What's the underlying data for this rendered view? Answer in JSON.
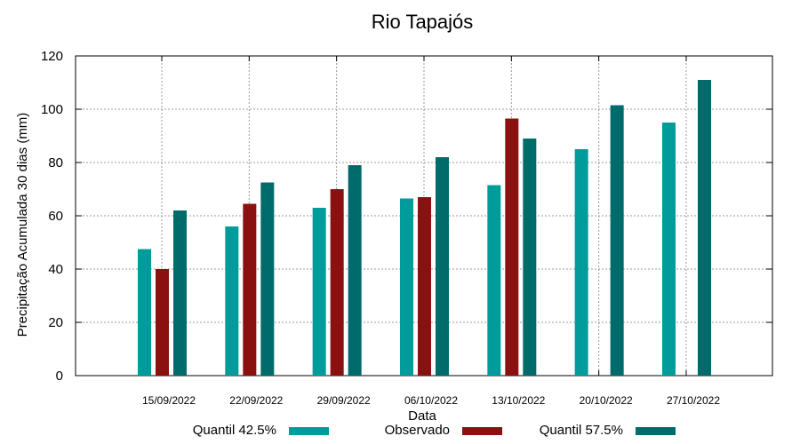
{
  "chart_data": {
    "type": "bar",
    "title": "Rio Tapajós",
    "xlabel": "Data",
    "ylabel": "Precipitação Acumulada 30 dias (mm)",
    "ylim": [
      0,
      120
    ],
    "yticks": [
      0,
      20,
      40,
      60,
      80,
      100,
      120
    ],
    "grid": true,
    "legend_position": "bottom",
    "categories": [
      "15/09/2022",
      "22/09/2022",
      "29/09/2022",
      "06/10/2022",
      "13/10/2022",
      "20/10/2022",
      "27/10/2022"
    ],
    "series": [
      {
        "name": "Quantil 42.5%",
        "color": "#009b9b",
        "values": [
          47.5,
          56,
          63,
          66.5,
          71.5,
          85,
          95
        ]
      },
      {
        "name": "Observado",
        "color": "#8b1010",
        "values": [
          40,
          64.5,
          70,
          67,
          96.5,
          null,
          null
        ]
      },
      {
        "name": "Quantil 57.5%",
        "color": "#006b6b",
        "values": [
          62,
          72.5,
          79,
          82,
          89,
          101.5,
          111
        ]
      }
    ]
  }
}
